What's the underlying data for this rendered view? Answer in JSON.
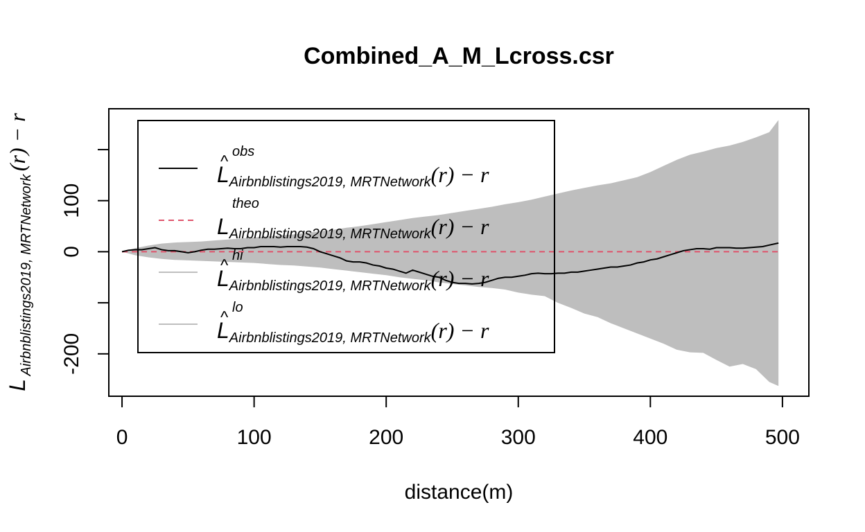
{
  "chart_data": {
    "type": "line",
    "title": "Combined_A_M_Lcross.csr",
    "xlabel": "distance(m)",
    "ylabel": {
      "base": "L",
      "sub": "Airbnblistings2019, MRTNetwork",
      "tail": "(r) − r"
    },
    "xlim": [
      -10,
      520
    ],
    "ylim": [
      -283,
      280
    ],
    "x_ticks": [
      0,
      100,
      200,
      300,
      400,
      500
    ],
    "x_tick_labels": [
      "0",
      "100",
      "200",
      "300",
      "400",
      "500"
    ],
    "y_ticks": [
      -200,
      -100,
      0,
      100,
      200
    ],
    "y_tick_labels": [
      "-200",
      "",
      "0",
      "100",
      ""
    ],
    "grid": false,
    "legend_position": "top-left",
    "legend": [
      {
        "sup": "obs",
        "style": "solid",
        "color": "#000000"
      },
      {
        "sup": "theo",
        "style": "dashed",
        "color": "#df536b"
      },
      {
        "sup": "hi",
        "style": "solid",
        "color": "#bebebe"
      },
      {
        "sup": "lo",
        "style": "solid",
        "color": "#bebebe"
      }
    ],
    "legend_label": {
      "sub": "Airbnblistings2019, MRTNetwork",
      "tail": "(r) − r"
    },
    "band": {
      "color": "#bebebe",
      "x": [
        0,
        10,
        20,
        30,
        40,
        50,
        60,
        70,
        80,
        90,
        100,
        110,
        120,
        130,
        140,
        150,
        160,
        170,
        180,
        190,
        200,
        210,
        220,
        230,
        240,
        250,
        260,
        270,
        280,
        290,
        300,
        310,
        320,
        330,
        340,
        350,
        360,
        370,
        380,
        390,
        400,
        410,
        420,
        430,
        440,
        450,
        460,
        470,
        480,
        490,
        497
      ],
      "hi": [
        0,
        7,
        12,
        16,
        18,
        19,
        20,
        22,
        24,
        26,
        28,
        30,
        32,
        34,
        37,
        40,
        43,
        47,
        50,
        54,
        58,
        62,
        66,
        69,
        72,
        76,
        80,
        84,
        88,
        93,
        97,
        102,
        108,
        114,
        120,
        125,
        130,
        134,
        140,
        146,
        156,
        168,
        180,
        190,
        196,
        203,
        208,
        215,
        224,
        234,
        258
      ],
      "lo": [
        0,
        -7,
        -11,
        -14,
        -16,
        -17,
        -18,
        -19,
        -20,
        -21,
        -22,
        -24,
        -26,
        -27,
        -29,
        -31,
        -34,
        -37,
        -40,
        -43,
        -46,
        -50,
        -53,
        -56,
        -60,
        -63,
        -66,
        -69,
        -71,
        -74,
        -80,
        -84,
        -87,
        -100,
        -110,
        -121,
        -128,
        -140,
        -150,
        -160,
        -170,
        -180,
        -192,
        -197,
        -198,
        -212,
        -225,
        -220,
        -230,
        -255,
        -263
      ]
    },
    "series": [
      {
        "name": "obs",
        "color": "#000000",
        "style": "solid",
        "x": [
          0,
          5,
          10,
          15,
          20,
          25,
          30,
          35,
          40,
          45,
          50,
          55,
          60,
          65,
          70,
          75,
          80,
          85,
          90,
          95,
          100,
          105,
          110,
          115,
          120,
          125,
          130,
          135,
          140,
          145,
          150,
          155,
          160,
          165,
          170,
          175,
          180,
          185,
          190,
          195,
          200,
          205,
          210,
          215,
          220,
          225,
          230,
          235,
          240,
          245,
          250,
          255,
          260,
          265,
          270,
          275,
          280,
          285,
          290,
          295,
          300,
          305,
          310,
          315,
          320,
          325,
          330,
          335,
          340,
          345,
          350,
          355,
          360,
          365,
          370,
          375,
          380,
          385,
          390,
          395,
          400,
          405,
          410,
          415,
          420,
          425,
          430,
          435,
          440,
          445,
          450,
          455,
          460,
          465,
          470,
          475,
          480,
          485,
          490,
          497
        ],
        "y": [
          0,
          3,
          4,
          4,
          6,
          8,
          4,
          2,
          2,
          0,
          -2,
          0,
          3,
          5,
          5,
          6,
          7,
          6,
          6,
          8,
          8,
          10,
          10,
          10,
          9,
          10,
          10,
          10,
          9,
          6,
          0,
          -4,
          -8,
          -12,
          -18,
          -20,
          -20,
          -22,
          -26,
          -28,
          -32,
          -34,
          -38,
          -42,
          -36,
          -40,
          -44,
          -48,
          -50,
          -56,
          -60,
          -62,
          -62,
          -63,
          -62,
          -60,
          -56,
          -52,
          -50,
          -50,
          -48,
          -46,
          -43,
          -42,
          -43,
          -43,
          -42,
          -42,
          -40,
          -40,
          -38,
          -36,
          -34,
          -32,
          -30,
          -30,
          -28,
          -26,
          -22,
          -20,
          -16,
          -14,
          -10,
          -6,
          -2,
          2,
          4,
          6,
          6,
          5,
          8,
          8,
          8,
          7,
          7,
          8,
          9,
          10,
          13,
          17
        ]
      },
      {
        "name": "theo",
        "color": "#df536b",
        "style": "dashed",
        "x": [
          0,
          497
        ],
        "y": [
          0,
          0
        ]
      }
    ]
  }
}
